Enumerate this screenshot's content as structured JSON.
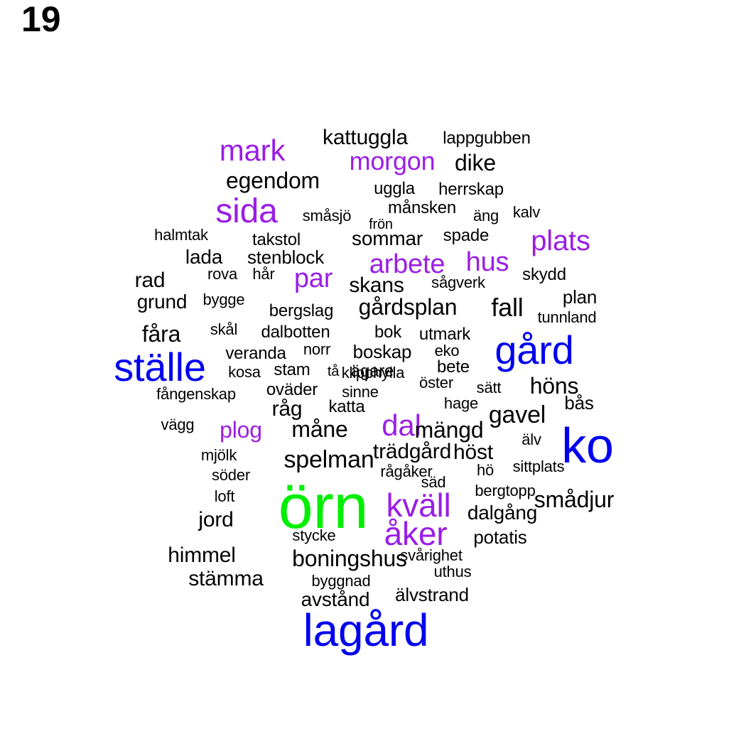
{
  "panel_number": "19",
  "colors": {
    "black": "#000000",
    "purple": "#9a1ee6",
    "blue": "#0000ee",
    "green": "#00ee00"
  },
  "words": [
    {
      "text": "örn",
      "color": "green"
    },
    {
      "text": "lagård",
      "color": "blue"
    },
    {
      "text": "ställe",
      "color": "blue"
    },
    {
      "text": "gård",
      "color": "blue"
    },
    {
      "text": "ko",
      "color": "blue"
    },
    {
      "text": "sida",
      "color": "purple"
    },
    {
      "text": "mark",
      "color": "purple"
    },
    {
      "text": "morgon",
      "color": "purple"
    },
    {
      "text": "plats",
      "color": "purple"
    },
    {
      "text": "arbete",
      "color": "purple"
    },
    {
      "text": "hus",
      "color": "purple"
    },
    {
      "text": "par",
      "color": "purple"
    },
    {
      "text": "dal",
      "color": "purple"
    },
    {
      "text": "plog",
      "color": "purple"
    },
    {
      "text": "kväll",
      "color": "purple"
    },
    {
      "text": "åker",
      "color": "purple"
    },
    {
      "text": "kattuggla",
      "color": "black"
    },
    {
      "text": "lappgubben",
      "color": "black"
    },
    {
      "text": "dike",
      "color": "black"
    },
    {
      "text": "egendom",
      "color": "black"
    },
    {
      "text": "uggla",
      "color": "black"
    },
    {
      "text": "herrskap",
      "color": "black"
    },
    {
      "text": "månsken",
      "color": "black"
    },
    {
      "text": "småsjö",
      "color": "black"
    },
    {
      "text": "frön",
      "color": "black"
    },
    {
      "text": "äng",
      "color": "black"
    },
    {
      "text": "kalv",
      "color": "black"
    },
    {
      "text": "halmtak",
      "color": "black"
    },
    {
      "text": "takstol",
      "color": "black"
    },
    {
      "text": "sommar",
      "color": "black"
    },
    {
      "text": "spade",
      "color": "black"
    },
    {
      "text": "lada",
      "color": "black"
    },
    {
      "text": "stenblock",
      "color": "black"
    },
    {
      "text": "rova",
      "color": "black"
    },
    {
      "text": "hår",
      "color": "black"
    },
    {
      "text": "skans",
      "color": "black"
    },
    {
      "text": "sågverk",
      "color": "black"
    },
    {
      "text": "skydd",
      "color": "black"
    },
    {
      "text": "rad",
      "color": "black"
    },
    {
      "text": "grund",
      "color": "black"
    },
    {
      "text": "bygge",
      "color": "black"
    },
    {
      "text": "bergslag",
      "color": "black"
    },
    {
      "text": "gårdsplan",
      "color": "black"
    },
    {
      "text": "fall",
      "color": "black"
    },
    {
      "text": "plan",
      "color": "black"
    },
    {
      "text": "tunnland",
      "color": "black"
    },
    {
      "text": "fåra",
      "color": "black"
    },
    {
      "text": "skål",
      "color": "black"
    },
    {
      "text": "dalbotten",
      "color": "black"
    },
    {
      "text": "bok",
      "color": "black"
    },
    {
      "text": "utmark",
      "color": "black"
    },
    {
      "text": "veranda",
      "color": "black"
    },
    {
      "text": "norr",
      "color": "black"
    },
    {
      "text": "boskap",
      "color": "black"
    },
    {
      "text": "eko",
      "color": "black"
    },
    {
      "text": "kosa",
      "color": "black"
    },
    {
      "text": "stam",
      "color": "black"
    },
    {
      "text": "tå",
      "color": "black"
    },
    {
      "text": "ägare",
      "color": "black"
    },
    {
      "text": "bete",
      "color": "black"
    },
    {
      "text": "fångenskap",
      "color": "black"
    },
    {
      "text": "oväder",
      "color": "black"
    },
    {
      "text": "sinne",
      "color": "black"
    },
    {
      "text": "öster",
      "color": "black"
    },
    {
      "text": "sätt",
      "color": "black"
    },
    {
      "text": "höns",
      "color": "black"
    },
    {
      "text": "råg",
      "color": "black"
    },
    {
      "text": "katta",
      "color": "black"
    },
    {
      "text": "hage",
      "color": "black"
    },
    {
      "text": "bås",
      "color": "black"
    },
    {
      "text": "gavel",
      "color": "black"
    },
    {
      "text": "vägg",
      "color": "black"
    },
    {
      "text": "måne",
      "color": "black"
    },
    {
      "text": "mängd",
      "color": "black"
    },
    {
      "text": "älv",
      "color": "black"
    },
    {
      "text": "mjölk",
      "color": "black"
    },
    {
      "text": "spelman",
      "color": "black"
    },
    {
      "text": "trädgård",
      "color": "black"
    },
    {
      "text": "höst",
      "color": "black"
    },
    {
      "text": "söder",
      "color": "black"
    },
    {
      "text": "rågåker",
      "color": "black"
    },
    {
      "text": "hö",
      "color": "black"
    },
    {
      "text": "sittplats",
      "color": "black"
    },
    {
      "text": "säd",
      "color": "black"
    },
    {
      "text": "loft",
      "color": "black"
    },
    {
      "text": "bergtopp",
      "color": "black"
    },
    {
      "text": "smådjur",
      "color": "black"
    },
    {
      "text": "jord",
      "color": "black"
    },
    {
      "text": "dalgång",
      "color": "black"
    },
    {
      "text": "stycke",
      "color": "black"
    },
    {
      "text": "potatis",
      "color": "black"
    },
    {
      "text": "himmel",
      "color": "black"
    },
    {
      "text": "boningshus",
      "color": "black"
    },
    {
      "text": "svårighet",
      "color": "black"
    },
    {
      "text": "uthus",
      "color": "black"
    },
    {
      "text": "stämma",
      "color": "black"
    },
    {
      "text": "byggnad",
      "color": "black"
    },
    {
      "text": "avstånd",
      "color": "black"
    },
    {
      "text": "älvstrand",
      "color": "black"
    },
    {
      "text": "klipphylla",
      "color": "black"
    }
  ]
}
